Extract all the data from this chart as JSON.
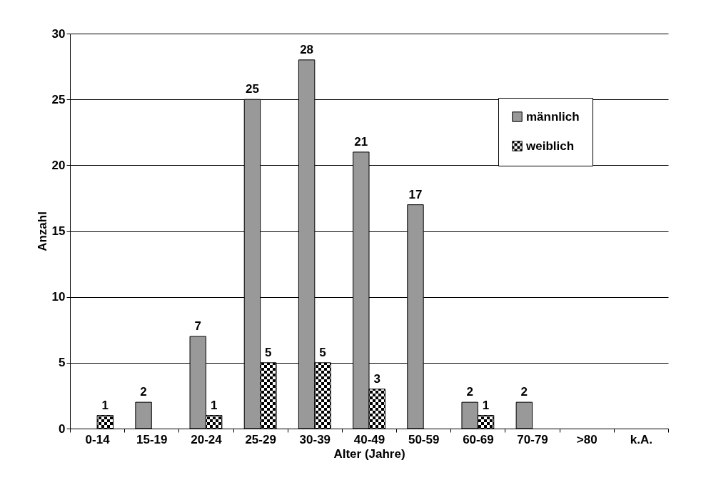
{
  "chart_data": {
    "type": "bar",
    "xlabel": "Alter (Jahre)",
    "ylabel": "Anzahl",
    "categories": [
      "0-14",
      "15-19",
      "20-24",
      "25-29",
      "30-39",
      "40-49",
      "50-59",
      "60-69",
      "70-79",
      ">80",
      "k.A."
    ],
    "series": [
      {
        "name": "männlich",
        "color": "#999999",
        "values": [
          null,
          2,
          7,
          25,
          28,
          21,
          17,
          2,
          2,
          null,
          null
        ]
      },
      {
        "name": "weiblich",
        "color": "#000000",
        "values": [
          1,
          null,
          1,
          5,
          5,
          3,
          null,
          1,
          null,
          null,
          null
        ]
      }
    ],
    "ylim": [
      0,
      30
    ],
    "yticks": [
      0,
      5,
      10,
      15,
      20,
      25,
      30
    ],
    "grid": "y",
    "legend": "top right",
    "data_labels": true
  }
}
